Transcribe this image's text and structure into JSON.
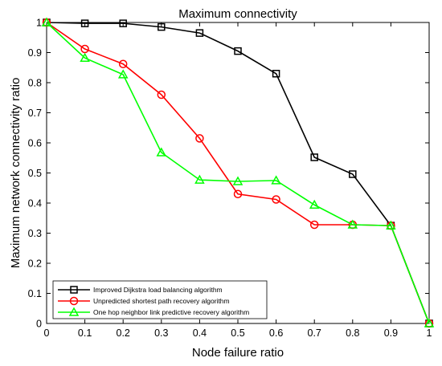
{
  "chart_data": {
    "type": "line",
    "title": "Maximum connectivity",
    "xlabel": "Node failure ratio",
    "ylabel": "Maximum network connectivity ratio",
    "x": [
      0,
      0.1,
      0.2,
      0.3,
      0.4,
      0.5,
      0.6,
      0.7,
      0.8,
      0.9,
      1
    ],
    "x_tick_labels": [
      "0",
      "0.1",
      "0.2",
      "0.3",
      "0.4",
      "0.5",
      "0.6",
      "0.7",
      "0.8",
      "0.9",
      "1"
    ],
    "y_tick_labels": [
      "0",
      "0.1",
      "0.2",
      "0.3",
      "0.4",
      "0.5",
      "0.6",
      "0.7",
      "0.8",
      "0.9",
      "1"
    ],
    "xlim": [
      0,
      1
    ],
    "ylim": [
      0,
      1
    ],
    "grid": false,
    "legend_position": "bottom-left",
    "series": [
      {
        "name": "Improved Dijkstra load balancing algorithm",
        "color": "#000000",
        "marker": "square",
        "values": [
          1.0,
          0.997,
          0.997,
          0.985,
          0.965,
          0.905,
          0.83,
          0.552,
          0.496,
          0.325,
          0.0
        ]
      },
      {
        "name": "Unpredicted shortest path recovery algorithm",
        "color": "#ff0000",
        "marker": "circle",
        "values": [
          1.0,
          0.912,
          0.862,
          0.76,
          0.615,
          0.43,
          0.412,
          0.328,
          0.328,
          0.325,
          0.0
        ]
      },
      {
        "name": "One hop neighbor link predictive recovery algorithm",
        "color": "#00ff00",
        "marker": "triangle",
        "values": [
          1.0,
          0.882,
          0.827,
          0.568,
          0.477,
          0.472,
          0.475,
          0.394,
          0.328,
          0.325,
          0.0
        ]
      }
    ]
  }
}
